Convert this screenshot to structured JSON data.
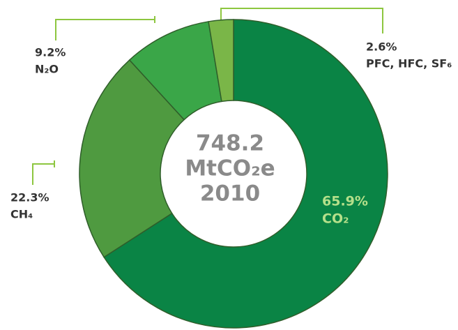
{
  "chart_data": {
    "type": "pie",
    "center_text": [
      "748.2",
      "MtCO₂e",
      "2010"
    ],
    "categories": [
      "CO₂",
      "CH₄",
      "N₂O",
      "PFC, HFC, SF₆"
    ],
    "values": [
      65.9,
      22.3,
      9.2,
      2.6
    ],
    "value_labels": [
      "65.9%",
      "22.3%",
      "9.2%",
      "2.6%"
    ],
    "colors": [
      "#0a8445",
      "#4f9a40",
      "#3aa648",
      "#7ab648"
    ]
  }
}
